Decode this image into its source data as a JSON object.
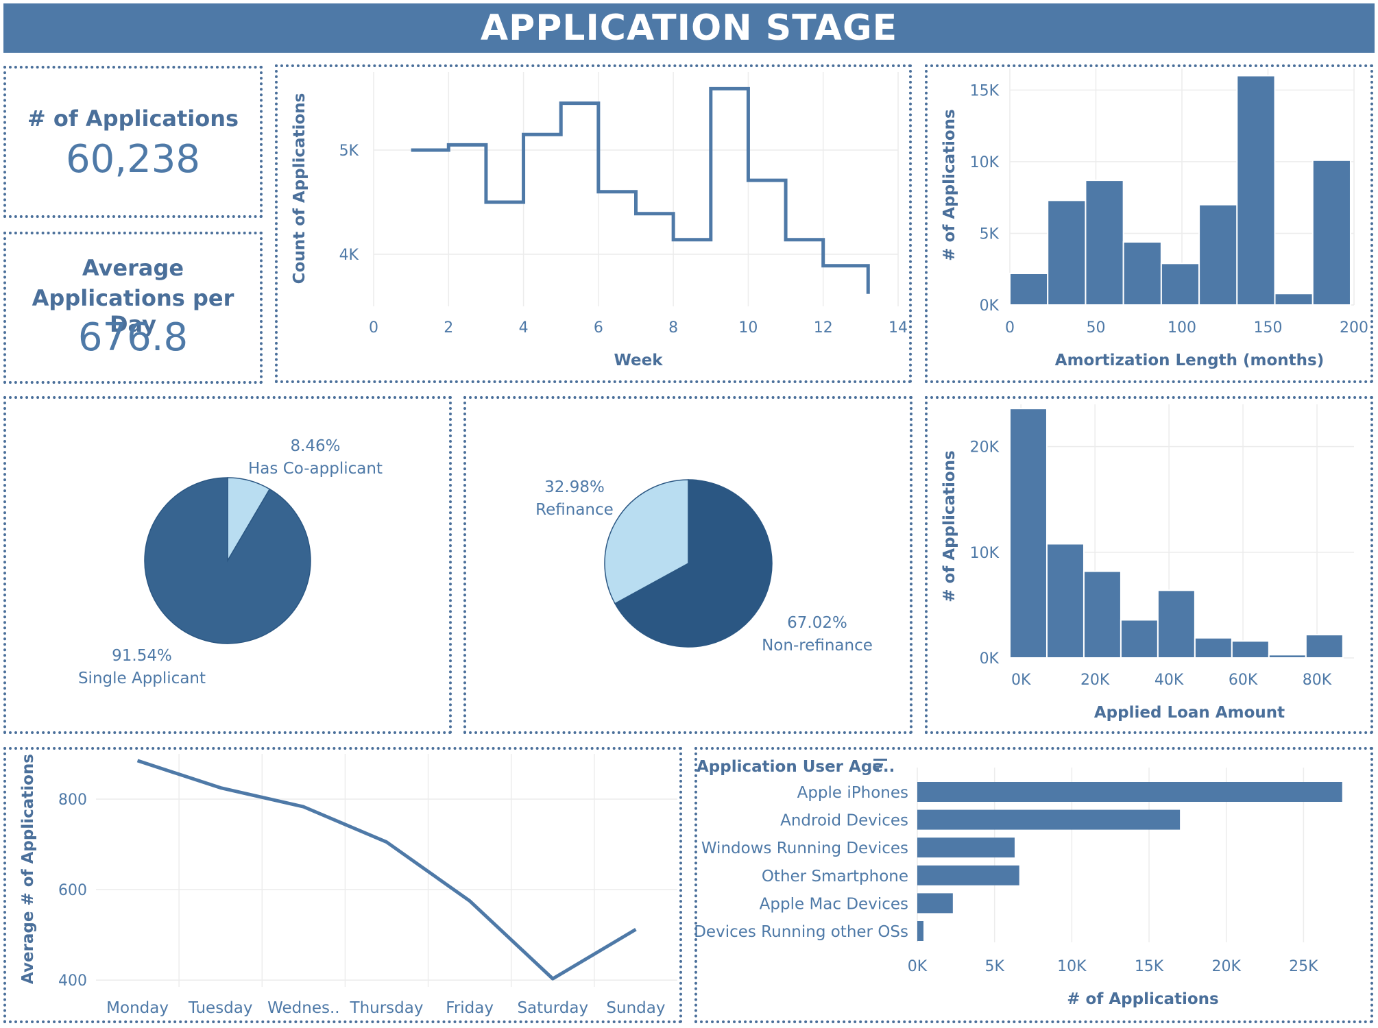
{
  "header": {
    "title": "APPLICATION STAGE"
  },
  "kpis": {
    "applications": {
      "label": "# of Applications",
      "value": "60,238"
    },
    "avg_per_day": {
      "label_line1": "Average",
      "label_line2": "Applications per Day",
      "value": "676.8"
    }
  },
  "colors": {
    "primary": "#4e79a7",
    "dark": "#376490",
    "darker": "#2b5783",
    "light": "#b9ddf1",
    "grid": "#ececec"
  },
  "chart_data": [
    {
      "id": "weekly",
      "type": "line",
      "step": true,
      "xlabel": "Week",
      "ylabel": "Count of Applications",
      "x": [
        1,
        2,
        3,
        4,
        5,
        6,
        7,
        8,
        9,
        10,
        11,
        12,
        13.2
      ],
      "y": [
        5000,
        5050,
        4500,
        5150,
        5450,
        4600,
        4390,
        4140,
        5590,
        4710,
        4140,
        3890,
        3620
      ],
      "xlim": [
        0,
        14
      ],
      "ylim": [
        3500,
        5750
      ],
      "xticks": [
        0,
        2,
        4,
        6,
        8,
        10,
        12,
        14
      ],
      "yticks": [
        4000,
        5000
      ],
      "ytick_labels": [
        "4K",
        "5K"
      ]
    },
    {
      "id": "amortization",
      "type": "bar",
      "histogram": true,
      "xlabel": "Amortization Length (months)",
      "ylabel": "# of Applications",
      "bin_edges": [
        0,
        22,
        44,
        66,
        88,
        110,
        132,
        154,
        176,
        198
      ],
      "values": [
        2200,
        7300,
        8700,
        4400,
        2900,
        7000,
        16000,
        800,
        10100
      ],
      "xlim": [
        0,
        200
      ],
      "ylim": [
        0,
        16500
      ],
      "xticks": [
        0,
        50,
        100,
        150,
        200
      ],
      "yticks": [
        0,
        5000,
        10000,
        15000
      ],
      "ytick_labels": [
        "0K",
        "5K",
        "10K",
        "15K"
      ]
    },
    {
      "id": "coapplicant",
      "type": "pie",
      "slices": [
        {
          "label": "Has Co-applicant",
          "value": 8.46,
          "pct_label": "8.46%",
          "color": "#b9ddf1"
        },
        {
          "label": "Single Applicant",
          "value": 91.54,
          "pct_label": "91.54%",
          "color": "#376490"
        }
      ]
    },
    {
      "id": "refinance",
      "type": "pie",
      "slices": [
        {
          "label": "Non-refinance",
          "value": 67.02,
          "pct_label": "67.02%",
          "color": "#2b5783"
        },
        {
          "label": "Refinance",
          "value": 32.98,
          "pct_label": "32.98%",
          "color": "#b9ddf1"
        }
      ]
    },
    {
      "id": "loan_amount",
      "type": "bar",
      "histogram": true,
      "xlabel": "Applied Loan Amount",
      "ylabel": "# of Applications",
      "bin_edges": [
        -3000,
        7000,
        17000,
        27000,
        37000,
        47000,
        57000,
        67000,
        77000,
        87000
      ],
      "values": [
        23600,
        10800,
        8200,
        3600,
        6400,
        1900,
        1600,
        300,
        2200
      ],
      "xlim": [
        -3000,
        90000
      ],
      "ylim": [
        0,
        24000
      ],
      "xticks": [
        0,
        20000,
        40000,
        60000,
        80000
      ],
      "xtick_labels": [
        "0K",
        "20K",
        "40K",
        "60K",
        "80K"
      ],
      "yticks": [
        0,
        10000,
        20000
      ],
      "ytick_labels": [
        "0K",
        "10K",
        "20K"
      ]
    },
    {
      "id": "weekday",
      "type": "line",
      "xlabel": "",
      "ylabel": "Average # of Applications",
      "categories": [
        "Monday",
        "Tuesday",
        "Wednes..",
        "Thursday",
        "Friday",
        "Saturday",
        "Sunday"
      ],
      "values": [
        885,
        825,
        783,
        705,
        575,
        403,
        512
      ],
      "ylim": [
        385,
        900
      ],
      "yticks": [
        400,
        600,
        800
      ]
    },
    {
      "id": "user_agent",
      "type": "bar",
      "orientation": "horizontal",
      "header": "Application User Age..",
      "xlabel": "# of Applications",
      "categories": [
        "Apple iPhones",
        "Android Devices",
        "Windows Running Devices",
        "Other Smartphone",
        "Apple Mac Devices",
        "Devices Running other OSs"
      ],
      "values": [
        27500,
        17000,
        6300,
        6600,
        2300,
        400
      ],
      "xlim": [
        0,
        28000
      ],
      "xticks": [
        0,
        5000,
        10000,
        15000,
        20000,
        25000
      ],
      "xtick_labels": [
        "0K",
        "5K",
        "10K",
        "15K",
        "20K",
        "25K"
      ]
    }
  ]
}
